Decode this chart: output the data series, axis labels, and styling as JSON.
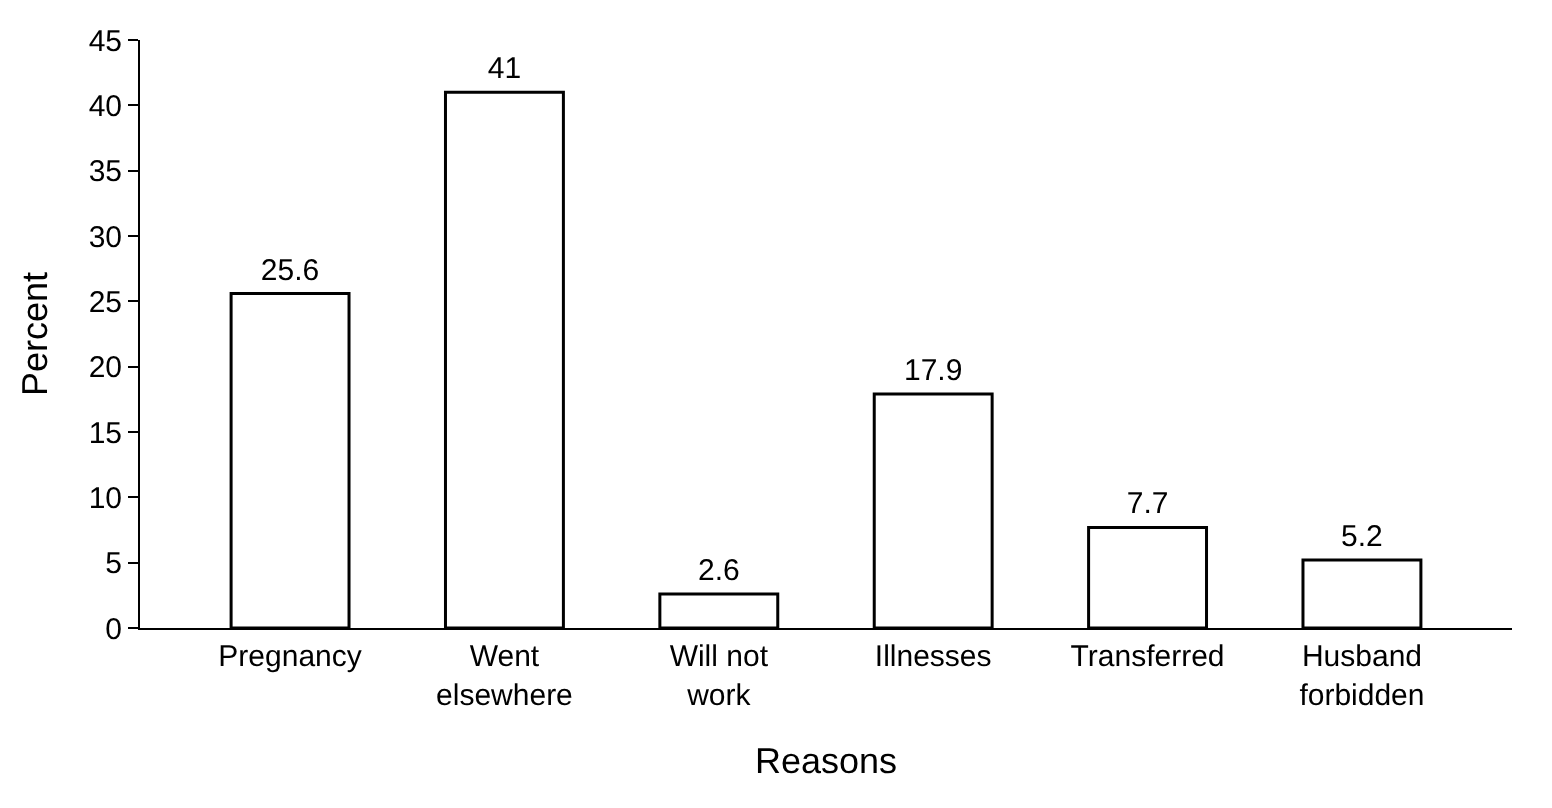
{
  "chart_data": {
    "type": "bar",
    "xlabel": "Reasons",
    "ylabel": "Percent",
    "categories": [
      "Pregnancy",
      "Went elsewhere",
      "Will not work",
      "Illnesses",
      "Transferred",
      "Husband forbidden"
    ],
    "values": [
      25.6,
      41,
      2.6,
      17.9,
      7.7,
      5.2
    ],
    "color": "#ffffff",
    "ylim": [
      0,
      45
    ],
    "yticks": [
      0,
      5,
      10,
      15,
      20,
      25,
      30,
      35,
      40,
      45
    ],
    "data_labels": true
  }
}
